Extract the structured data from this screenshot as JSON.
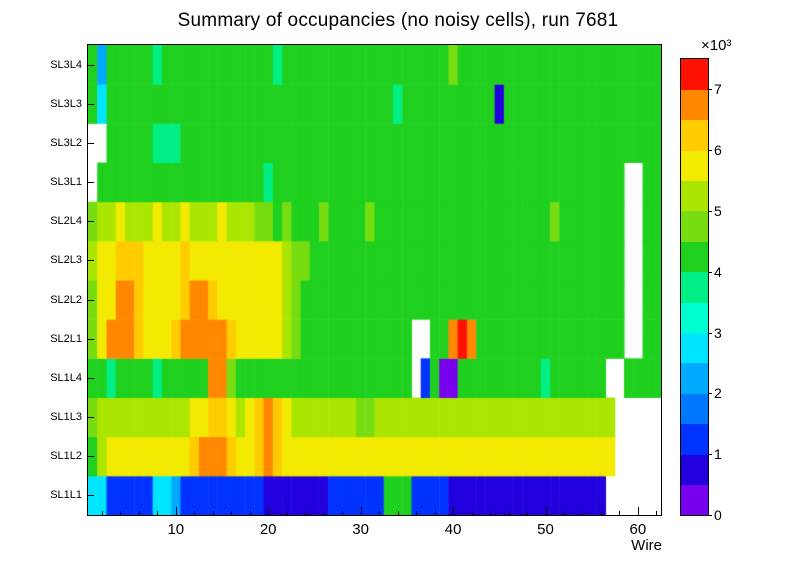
{
  "chart_data": {
    "type": "heatmap",
    "title": "Summary of occupancies (no noisy cells), run 7681",
    "xlabel": "Wire",
    "x_min": 0.5,
    "x_max": 62.5,
    "x_major_ticks": [
      10,
      20,
      30,
      40,
      50,
      60
    ],
    "x_minor_tick_step": 2,
    "z_min": 0,
    "z_max": 7500,
    "grid": false,
    "empty_color": "#ffffff",
    "colorbar": {
      "scale_label": "×10³",
      "tick_values": [
        0,
        1,
        2,
        3,
        4,
        5,
        6,
        7
      ],
      "tick_unit": 1000
    },
    "palette": [
      {
        "max": 500,
        "color": "#7700ee"
      },
      {
        "max": 1000,
        "color": "#2200dd"
      },
      {
        "max": 1500,
        "color": "#0033ff"
      },
      {
        "max": 2000,
        "color": "#0077ff"
      },
      {
        "max": 2500,
        "color": "#00aaff"
      },
      {
        "max": 3000,
        "color": "#00e5ff"
      },
      {
        "max": 3500,
        "color": "#00ffd0"
      },
      {
        "max": 4000,
        "color": "#00ef84"
      },
      {
        "max": 4500,
        "color": "#1fd01f"
      },
      {
        "max": 5000,
        "color": "#77dd11"
      },
      {
        "max": 5500,
        "color": "#aae600"
      },
      {
        "max": 6000,
        "color": "#f2ea00"
      },
      {
        "max": 6500,
        "color": "#ffcc00"
      },
      {
        "max": 7000,
        "color": "#ff8800"
      },
      {
        "max": 7500,
        "color": "#ff1100"
      }
    ],
    "rows_bottom_to_top": [
      {
        "label": "SL1L1",
        "values": [
          2700,
          2600,
          1300,
          1200,
          1300,
          1100,
          1400,
          2600,
          2700,
          2500,
          1300,
          1200,
          1400,
          1300,
          1100,
          1300,
          1400,
          1200,
          1300,
          900,
          800,
          900,
          800,
          900,
          800,
          900,
          1300,
          1200,
          1400,
          1300,
          1200,
          1300,
          4200,
          4300,
          4100,
          1300,
          1200,
          1300,
          1100,
          800,
          900,
          800,
          900,
          800,
          900,
          800,
          900,
          800,
          900,
          800,
          900,
          800,
          900,
          800,
          900,
          800,
          null,
          null,
          null,
          null,
          null,
          null
        ]
      },
      {
        "label": "SL1L2",
        "values": [
          4300,
          5300,
          5800,
          5900,
          5800,
          5700,
          5900,
          5800,
          5700,
          5900,
          5800,
          6200,
          6600,
          6700,
          6600,
          6300,
          5900,
          5800,
          6500,
          6700,
          6500,
          5900,
          5800,
          5700,
          5900,
          5800,
          5700,
          5800,
          5900,
          5700,
          5800,
          5900,
          5700,
          5800,
          5900,
          5700,
          5800,
          5700,
          5900,
          5800,
          5700,
          5800,
          5900,
          5700,
          5800,
          5700,
          5900,
          5800,
          5700,
          5800,
          5700,
          5900,
          5800,
          5700,
          5800,
          5900,
          5700,
          null,
          null,
          null,
          null,
          null
        ]
      },
      {
        "label": "SL1L3",
        "values": [
          4600,
          5200,
          5300,
          5400,
          5300,
          5200,
          5400,
          5300,
          5200,
          5400,
          5300,
          5700,
          5900,
          6200,
          6100,
          5700,
          5400,
          5800,
          6400,
          6600,
          6300,
          5800,
          5500,
          5400,
          5300,
          5400,
          5300,
          5200,
          5400,
          5000,
          4900,
          5100,
          5300,
          5400,
          5300,
          5400,
          5500,
          5400,
          5300,
          5400,
          5500,
          5300,
          5400,
          5300,
          5400,
          5500,
          5300,
          5400,
          5500,
          5400,
          5300,
          5400,
          5500,
          5300,
          5400,
          5300,
          5400,
          null,
          null,
          null,
          null,
          null
        ]
      },
      {
        "label": "SL1L4",
        "values": [
          4400,
          4100,
          4000,
          4300,
          4400,
          4200,
          4300,
          3800,
          4300,
          4400,
          4200,
          4400,
          4400,
          6600,
          6700,
          4800,
          4300,
          4400,
          4300,
          4200,
          4400,
          4300,
          4200,
          4400,
          4300,
          4200,
          4300,
          4400,
          4200,
          4300,
          4400,
          4200,
          4300,
          4400,
          4200,
          null,
          1300,
          4300,
          400,
          400,
          4400,
          4300,
          4200,
          4300,
          4400,
          4200,
          4300,
          4400,
          4200,
          3700,
          4300,
          4400,
          4200,
          4300,
          4400,
          4200,
          null,
          null,
          4300,
          4200,
          4400,
          4300
        ]
      },
      {
        "label": "SL2L1",
        "values": [
          4700,
          5900,
          6700,
          6800,
          6700,
          6300,
          5900,
          5800,
          5900,
          6200,
          6800,
          6900,
          6800,
          6900,
          6700,
          6200,
          5900,
          5800,
          5900,
          5800,
          5700,
          5400,
          4800,
          4400,
          4300,
          4400,
          4200,
          4300,
          4400,
          4200,
          4300,
          4200,
          4100,
          4300,
          4200,
          null,
          null,
          4300,
          4400,
          6700,
          7300,
          6600,
          4300,
          4200,
          4300,
          4100,
          4300,
          4400,
          4300,
          4200,
          4300,
          4400,
          4300,
          4200,
          4300,
          4400,
          4300,
          4200,
          null,
          null,
          4300,
          4200
        ]
      },
      {
        "label": "SL2L2",
        "values": [
          4900,
          5700,
          5900,
          6700,
          6600,
          6100,
          5800,
          5900,
          5800,
          6000,
          6500,
          6700,
          6600,
          6500,
          6000,
          5900,
          5800,
          5900,
          6000,
          5800,
          5700,
          5400,
          4800,
          4400,
          4300,
          4400,
          4200,
          4300,
          4400,
          4300,
          4200,
          4300,
          4200,
          4300,
          4200,
          4100,
          4200,
          4300,
          4200,
          4300,
          4400,
          4200,
          4300,
          4200,
          4100,
          4200,
          4300,
          4200,
          4100,
          4200,
          4300,
          4200,
          4100,
          4200,
          4300,
          4200,
          4100,
          4200,
          null,
          null,
          4200,
          4300
        ]
      },
      {
        "label": "SL2L3",
        "values": [
          5300,
          5800,
          6000,
          6400,
          6300,
          6100,
          5900,
          5800,
          5900,
          6000,
          6100,
          6000,
          5900,
          6000,
          5900,
          5800,
          5900,
          5800,
          5700,
          5800,
          5600,
          5300,
          5000,
          4800,
          4400,
          4300,
          4400,
          4300,
          4200,
          4300,
          4400,
          4300,
          4200,
          4300,
          4200,
          4300,
          4200,
          4100,
          4200,
          4300,
          4200,
          4300,
          4200,
          4100,
          4200,
          4300,
          4200,
          4100,
          4200,
          4300,
          4200,
          4100,
          4200,
          4300,
          4200,
          4100,
          4200,
          4300,
          null,
          null,
          4200,
          4200
        ]
      },
      {
        "label": "SL2L4",
        "values": [
          4700,
          5200,
          5400,
          5700,
          5400,
          5300,
          5400,
          5700,
          5300,
          5400,
          5700,
          5400,
          5300,
          5400,
          5700,
          5300,
          5200,
          5100,
          4800,
          4700,
          4400,
          4600,
          4300,
          4200,
          4300,
          4600,
          4200,
          4300,
          4200,
          4300,
          4600,
          4200,
          4300,
          4200,
          4100,
          4200,
          4300,
          4200,
          4100,
          4200,
          4300,
          4200,
          4300,
          4100,
          4200,
          4300,
          4200,
          4100,
          4200,
          4300,
          4800,
          4200,
          4300,
          4200,
          4100,
          4200,
          4300,
          4200,
          null,
          null,
          4200,
          4300
        ]
      },
      {
        "label": "SL3L1",
        "values": [
          null,
          4200,
          4300,
          4400,
          4200,
          4300,
          4400,
          4200,
          4300,
          4400,
          4300,
          4200,
          4400,
          4300,
          4200,
          4300,
          4400,
          4200,
          4300,
          3700,
          4300,
          4400,
          4200,
          4300,
          4400,
          4200,
          4300,
          4200,
          4400,
          4300,
          4200,
          4300,
          4400,
          4200,
          4300,
          4400,
          4200,
          4300,
          4200,
          4400,
          4300,
          4200,
          4300,
          4400,
          4200,
          4300,
          4400,
          4200,
          4300,
          4200,
          4400,
          4300,
          4200,
          4300,
          4400,
          4200,
          4300,
          4400,
          null,
          null,
          4300,
          4200
        ]
      },
      {
        "label": "SL3L2",
        "values": [
          null,
          null,
          4300,
          4200,
          4400,
          4300,
          4200,
          3600,
          3700,
          3600,
          4300,
          4200,
          4400,
          4300,
          4200,
          4300,
          4400,
          4200,
          4300,
          4400,
          4300,
          4200,
          4300,
          4400,
          4200,
          4300,
          4400,
          4300,
          4200,
          4300,
          4400,
          4200,
          4300,
          4400,
          4200,
          4300,
          4200,
          4400,
          4300,
          4200,
          4300,
          4400,
          4200,
          4300,
          4400,
          4200,
          4300,
          4200,
          4400,
          4300,
          4200,
          4300,
          4400,
          4200,
          4300,
          4400,
          4200,
          4300,
          4400,
          4200,
          4300,
          4300
        ]
      },
      {
        "label": "SL3L3",
        "values": [
          4300,
          2700,
          4300,
          4200,
          4400,
          4300,
          4200,
          4300,
          4400,
          4200,
          4300,
          4200,
          4400,
          4300,
          4200,
          4300,
          4400,
          4200,
          4300,
          4400,
          4300,
          4200,
          4300,
          4400,
          4200,
          4300,
          4400,
          4300,
          4200,
          4300,
          4400,
          4200,
          4300,
          3700,
          4200,
          4300,
          4200,
          4400,
          4300,
          4200,
          4300,
          4400,
          4200,
          4300,
          900,
          4300,
          4400,
          4200,
          4300,
          4200,
          4400,
          4300,
          4200,
          4300,
          4400,
          4200,
          4300,
          4400,
          4200,
          4300,
          4400,
          4300
        ]
      },
      {
        "label": "SL3L4",
        "values": [
          4400,
          2200,
          4300,
          4400,
          4200,
          4300,
          4400,
          3700,
          4300,
          4200,
          4400,
          4300,
          4200,
          4400,
          4300,
          4400,
          4200,
          4300,
          4400,
          4200,
          3700,
          4300,
          4200,
          4400,
          4300,
          4400,
          4200,
          4300,
          4400,
          4300,
          4200,
          4400,
          4300,
          4400,
          4200,
          4300,
          4400,
          4300,
          4200,
          4800,
          4400,
          4300,
          4400,
          4200,
          4300,
          4400,
          4200,
          4300,
          4400,
          4300,
          4200,
          4400,
          4300,
          4200,
          4400,
          4300,
          4400,
          4200,
          4300,
          4400,
          4300,
          4400
        ]
      }
    ]
  }
}
